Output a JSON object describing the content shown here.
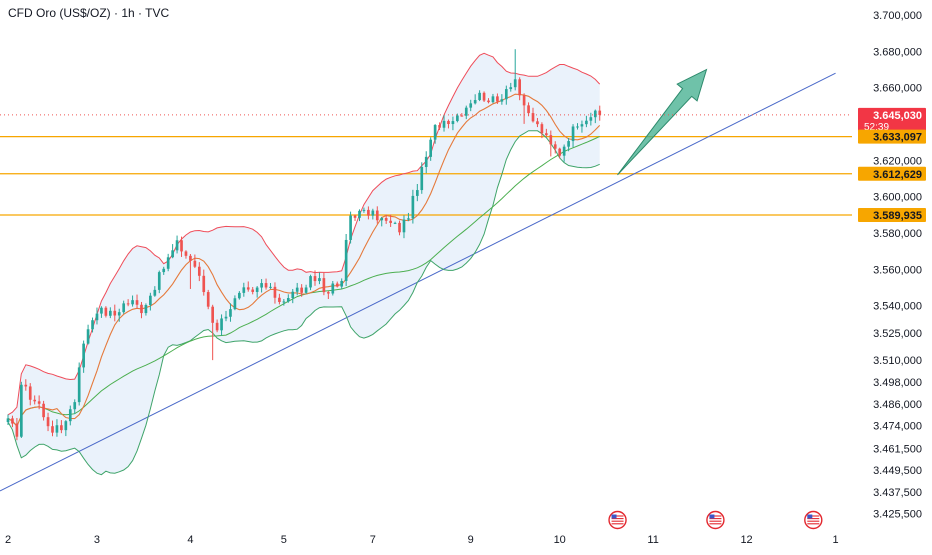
{
  "header": {
    "symbol": "CFD Oro (US$/OZ)",
    "interval": "1h",
    "source": "TVC",
    "separator": " · "
  },
  "colors": {
    "up": "#26a69a",
    "down": "#ef5350",
    "support": "#f7a600",
    "trend": "#4a69c9",
    "bb_upper": "#ef4d5a",
    "bb_lower": "#3fa46a",
    "ma_fast": "#e57a3c",
    "ma_slow": "#4caf50",
    "arrow_fill": "#3fae8c",
    "badge_current": "#f23645",
    "badge_support": "#f7a600"
  },
  "chart_data": {
    "type": "candlestick",
    "y_range": [
      3422,
      3705
    ],
    "x_range": [
      0,
      197
    ],
    "grid": false,
    "price_axis_ticks": [
      {
        "v": 3700,
        "t": "3.700,000"
      },
      {
        "v": 3680,
        "t": "3.680,000"
      },
      {
        "v": 3660,
        "t": "3.660,000"
      },
      {
        "v": 3620,
        "t": "3.620,000"
      },
      {
        "v": 3600,
        "t": "3.600,000"
      },
      {
        "v": 3580,
        "t": "3.580,000"
      },
      {
        "v": 3560,
        "t": "3.560,000"
      },
      {
        "v": 3540,
        "t": "3.540,000"
      },
      {
        "v": 3525,
        "t": "3.525,000"
      },
      {
        "v": 3510,
        "t": "3.510,000"
      },
      {
        "v": 3498,
        "t": "3.498,000"
      },
      {
        "v": 3486,
        "t": "3.486,000"
      },
      {
        "v": 3474,
        "t": "3.474,000"
      },
      {
        "v": 3461.5,
        "t": "3.461,500"
      },
      {
        "v": 3449.5,
        "t": "3.449,500"
      },
      {
        "v": 3437.5,
        "t": "3.437,500"
      },
      {
        "v": 3425.5,
        "t": "3.425,500"
      }
    ],
    "time_axis_ticks": [
      {
        "x": 0,
        "t": "2"
      },
      {
        "x": 20,
        "t": "3"
      },
      {
        "x": 41,
        "t": "4"
      },
      {
        "x": 62,
        "t": "5"
      },
      {
        "x": 82,
        "t": "7"
      },
      {
        "x": 104,
        "t": "9"
      },
      {
        "x": 124,
        "t": "10"
      },
      {
        "x": 145,
        "t": "11"
      },
      {
        "x": 166,
        "t": "12"
      },
      {
        "x": 186,
        "t": "1"
      }
    ],
    "price_labels": [
      {
        "name": "current-price",
        "value": 3645.03,
        "text": "3.645,030",
        "sub": "52:39"
      },
      {
        "name": "support-1",
        "value": 3633.097,
        "text": "3.633,097"
      },
      {
        "name": "support-2",
        "value": 3612.629,
        "text": "3.612,629"
      },
      {
        "name": "support-3",
        "value": 3589.935,
        "text": "3.589,935"
      }
    ],
    "horizontal_lines": [
      3633.097,
      3612.629,
      3589.935
    ],
    "current_price": 3645.03,
    "trendline": {
      "x1": 0,
      "y1": 3441,
      "x2": 186,
      "y2": 3668
    },
    "forecast_arrow": {
      "from_x": 137,
      "from_y": 3612,
      "to_x": 157,
      "to_y": 3670
    },
    "event_markers_x": [
      137,
      159,
      181
    ],
    "anchors": [
      [
        0,
        3476
      ],
      [
        2,
        3470
      ],
      [
        3,
        3497
      ],
      [
        5,
        3490
      ],
      [
        7,
        3486
      ],
      [
        8,
        3478
      ],
      [
        10,
        3472
      ],
      [
        12,
        3472
      ],
      [
        13,
        3478
      ],
      [
        15,
        3488
      ],
      [
        16,
        3508
      ],
      [
        18,
        3528
      ],
      [
        20,
        3538
      ],
      [
        22,
        3536
      ],
      [
        24,
        3535
      ],
      [
        26,
        3541
      ],
      [
        28,
        3542
      ],
      [
        30,
        3538
      ],
      [
        32,
        3546
      ],
      [
        34,
        3556
      ],
      [
        36,
        3566
      ],
      [
        38,
        3574
      ],
      [
        40,
        3568
      ],
      [
        42,
        3562
      ],
      [
        44,
        3548
      ],
      [
        46,
        3532
      ],
      [
        47,
        3528
      ],
      [
        49,
        3536
      ],
      [
        51,
        3543
      ],
      [
        53,
        3548
      ],
      [
        55,
        3546
      ],
      [
        57,
        3552
      ],
      [
        59,
        3548
      ],
      [
        61,
        3543
      ],
      [
        63,
        3545
      ],
      [
        65,
        3549
      ],
      [
        67,
        3548
      ],
      [
        68,
        3554
      ],
      [
        70,
        3555
      ],
      [
        71,
        3548
      ],
      [
        73,
        3550
      ],
      [
        75,
        3552
      ],
      [
        76,
        3576
      ],
      [
        77,
        3590
      ],
      [
        79,
        3591
      ],
      [
        81,
        3591
      ],
      [
        83,
        3589
      ],
      [
        85,
        3586
      ],
      [
        87,
        3584
      ],
      [
        88,
        3582
      ],
      [
        90,
        3590
      ],
      [
        92,
        3606
      ],
      [
        94,
        3622
      ],
      [
        96,
        3638
      ],
      [
        98,
        3642
      ],
      [
        100,
        3643
      ],
      [
        102,
        3647
      ],
      [
        104,
        3653
      ],
      [
        106,
        3656
      ],
      [
        108,
        3654
      ],
      [
        110,
        3652
      ],
      [
        112,
        3660
      ],
      [
        114,
        3665
      ],
      [
        116,
        3648
      ],
      [
        118,
        3642
      ],
      [
        120,
        3636
      ],
      [
        122,
        3628
      ],
      [
        124,
        3624
      ],
      [
        126,
        3633
      ],
      [
        128,
        3641
      ],
      [
        131,
        3645
      ],
      [
        133,
        3645
      ]
    ]
  }
}
